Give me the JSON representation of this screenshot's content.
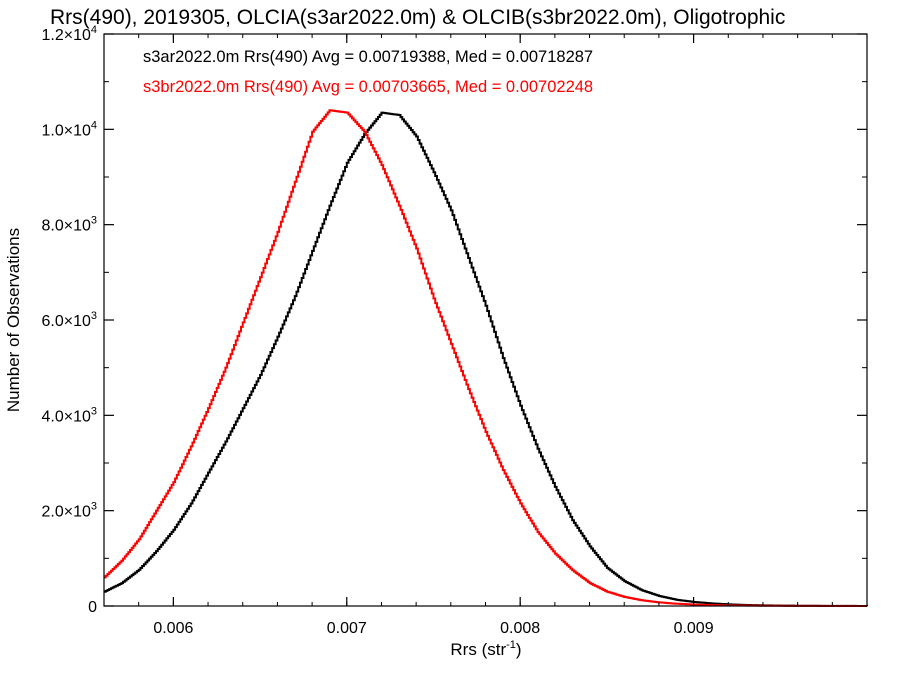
{
  "chart_data": {
    "type": "line",
    "title": "Rrs(490), 2019305, OLCIA(s3ar2022.0m) & OLCIB(s3br2022.0m), Oligotrophic",
    "xlabel": "Rrs (str",
    "xlabel_sup": "-1",
    "xlabel_tail": ")",
    "ylabel": "Number of Observations",
    "xlim": [
      0.0056,
      0.01
    ],
    "ylim": [
      0,
      12000
    ],
    "x_ticks": [
      {
        "value": 0.006,
        "label": "0.006"
      },
      {
        "value": 0.007,
        "label": "0.007"
      },
      {
        "value": 0.008,
        "label": "0.008"
      },
      {
        "value": 0.009,
        "label": "0.009"
      }
    ],
    "y_ticks": [
      {
        "value": 0,
        "mant": "0",
        "exp": ""
      },
      {
        "value": 2000,
        "mant": "2.0×10",
        "exp": "3"
      },
      {
        "value": 4000,
        "mant": "4.0×10",
        "exp": "3"
      },
      {
        "value": 6000,
        "mant": "6.0×10",
        "exp": "3"
      },
      {
        "value": 8000,
        "mant": "8.0×10",
        "exp": "3"
      },
      {
        "value": 10000,
        "mant": "1.0×10",
        "exp": "4"
      },
      {
        "value": 12000,
        "mant": "1.2×10",
        "exp": "4"
      }
    ],
    "grid": false,
    "legend_position": "top-left",
    "series": [
      {
        "color": "#000000",
        "legend": "s3ar2022.0m Rrs(490) Avg = 0.00719388, Med = 0.00718287",
        "x": [
          0.0056,
          0.0057,
          0.0058,
          0.0059,
          0.006,
          0.0061,
          0.0062,
          0.0063,
          0.0064,
          0.0065,
          0.0066,
          0.0067,
          0.0068,
          0.0069,
          0.007,
          0.0071,
          0.0072,
          0.0073,
          0.0074,
          0.0075,
          0.0076,
          0.0077,
          0.0078,
          0.0079,
          0.008,
          0.0081,
          0.0082,
          0.0083,
          0.0084,
          0.0085,
          0.0086,
          0.0087,
          0.0088,
          0.0089,
          0.009,
          0.0091,
          0.0092,
          0.0093,
          0.0094,
          0.0095,
          0.0096,
          0.0097,
          0.0098,
          0.0099,
          0.01
        ],
        "y": [
          300,
          480,
          760,
          1150,
          1600,
          2150,
          2800,
          3450,
          4150,
          4850,
          5650,
          6500,
          7450,
          8400,
          9300,
          9900,
          10350,
          10300,
          9850,
          9100,
          8300,
          7300,
          6300,
          5200,
          4200,
          3300,
          2500,
          1800,
          1250,
          800,
          520,
          330,
          210,
          130,
          85,
          55,
          35,
          22,
          14,
          9,
          6,
          4,
          3,
          2,
          0
        ]
      },
      {
        "color": "#ff0000",
        "legend": "s3br2022.0m Rrs(490) Avg = 0.00703665, Med = 0.00702248",
        "x": [
          0.0056,
          0.0057,
          0.0058,
          0.0059,
          0.006,
          0.0061,
          0.0062,
          0.0063,
          0.0064,
          0.0065,
          0.0066,
          0.0067,
          0.0068,
          0.0069,
          0.007,
          0.0071,
          0.0072,
          0.0073,
          0.0074,
          0.0075,
          0.0076,
          0.0077,
          0.0078,
          0.0079,
          0.008,
          0.0081,
          0.0082,
          0.0083,
          0.0084,
          0.0085,
          0.0086,
          0.0087,
          0.0088,
          0.0089,
          0.009,
          0.0091,
          0.0092,
          0.0093,
          0.0094,
          0.0095,
          0.0096,
          0.0097,
          0.0098,
          0.0099,
          0.01
        ],
        "y": [
          600,
          950,
          1400,
          2000,
          2600,
          3350,
          4150,
          5000,
          5950,
          6900,
          7850,
          8900,
          9950,
          10400,
          10350,
          9950,
          9250,
          8400,
          7500,
          6450,
          5500,
          4550,
          3650,
          2850,
          2150,
          1550,
          1100,
          750,
          480,
          300,
          190,
          120,
          75,
          48,
          30,
          20,
          13,
          9,
          6,
          4,
          3,
          2,
          1,
          1,
          0
        ]
      }
    ]
  }
}
